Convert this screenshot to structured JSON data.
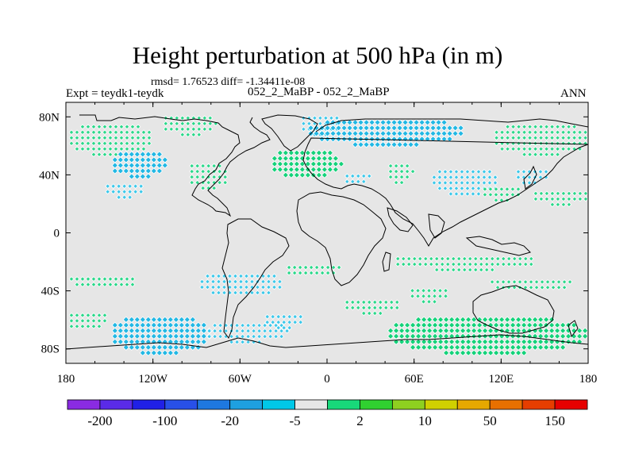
{
  "chart_data": {
    "type": "heatmap",
    "title": "Height perturbation at 500 hPa (in m)",
    "stats_text": "rmsd= 1.76523 diff= -1.34411e-08",
    "left_label": "Expt = teydk1-teydk",
    "center_label": "052_2_MaBP - 052_2_MaBP",
    "right_label": "ANN",
    "x_ticks": [
      "180",
      "120W",
      "60W",
      "0",
      "60E",
      "120E",
      "180"
    ],
    "y_ticks": [
      "80N",
      "40N",
      "0",
      "40S",
      "80S"
    ],
    "xlim": [
      -180,
      180
    ],
    "ylim": [
      -90,
      90
    ],
    "colorbar": {
      "labels": [
        "-200",
        "-100",
        "-20",
        "-5",
        "2",
        "10",
        "50",
        "150"
      ],
      "colors": [
        "#8a2be2",
        "#5a2be8",
        "#2020e6",
        "#2850e8",
        "#1e78e0",
        "#1ea0e0",
        "#00c8e8",
        "#e6e6e6",
        "#18d87a",
        "#30d030",
        "#8ed020",
        "#d0d000",
        "#e6a800",
        "#e87000",
        "#e63e00",
        "#e60000"
      ]
    },
    "anomaly_regions": [
      {
        "lon": -150,
        "lat": 65,
        "hw": 30,
        "hh": 12,
        "level": 2
      },
      {
        "lon": -130,
        "lat": 48,
        "hw": 20,
        "hh": 10,
        "level": -5
      },
      {
        "lon": -140,
        "lat": 30,
        "hw": 15,
        "hh": 6,
        "level": -2
      },
      {
        "lon": -82,
        "lat": 40,
        "hw": 15,
        "hh": 10,
        "level": 2
      },
      {
        "lon": -95,
        "lat": 75,
        "hw": 20,
        "hh": 8,
        "level": 2
      },
      {
        "lon": -15,
        "lat": 48,
        "hw": 25,
        "hh": 11,
        "level": 5
      },
      {
        "lon": -5,
        "lat": 75,
        "hw": 15,
        "hh": 8,
        "level": -2
      },
      {
        "lon": 40,
        "lat": 70,
        "hw": 55,
        "hh": 10,
        "level": -5
      },
      {
        "lon": 50,
        "lat": 42,
        "hw": 10,
        "hh": 8,
        "level": 2
      },
      {
        "lon": 20,
        "lat": 38,
        "hw": 10,
        "hh": 5,
        "level": -2
      },
      {
        "lon": 95,
        "lat": 36,
        "hw": 25,
        "hh": 10,
        "level": -2
      },
      {
        "lon": 148,
        "lat": 65,
        "hw": 35,
        "hh": 12,
        "level": 2
      },
      {
        "lon": 140,
        "lat": 40,
        "hw": 12,
        "hh": 6,
        "level": -2
      },
      {
        "lon": 120,
        "lat": 28,
        "hw": 15,
        "hh": 6,
        "level": 2
      },
      {
        "lon": 160,
        "lat": 25,
        "hw": 20,
        "hh": 6,
        "level": 2
      },
      {
        "lon": -155,
        "lat": -33,
        "hw": 25,
        "hh": 5,
        "level": 2
      },
      {
        "lon": -60,
        "lat": -35,
        "hw": 30,
        "hh": 9,
        "level": -2
      },
      {
        "lon": -10,
        "lat": -25,
        "hw": 20,
        "hh": 5,
        "level": 2
      },
      {
        "lon": 95,
        "lat": -20,
        "hw": 50,
        "hh": 6,
        "level": 2
      },
      {
        "lon": 140,
        "lat": -35,
        "hw": 30,
        "hh": 5,
        "level": 2
      },
      {
        "lon": 70,
        "lat": -42,
        "hw": 15,
        "hh": 6,
        "level": 2
      },
      {
        "lon": -115,
        "lat": -70,
        "hw": 35,
        "hh": 14,
        "level": -5
      },
      {
        "lon": -55,
        "lat": -68,
        "hw": 30,
        "hh": 8,
        "level": -2
      },
      {
        "lon": 110,
        "lat": -70,
        "hw": 70,
        "hh": 14,
        "level": 5
      },
      {
        "lon": -165,
        "lat": -60,
        "hw": 15,
        "hh": 7,
        "level": 2
      },
      {
        "lon": -30,
        "lat": -60,
        "hw": 15,
        "hh": 6,
        "level": -2
      },
      {
        "lon": 30,
        "lat": -50,
        "hw": 20,
        "hh": 6,
        "level": 2
      }
    ]
  }
}
